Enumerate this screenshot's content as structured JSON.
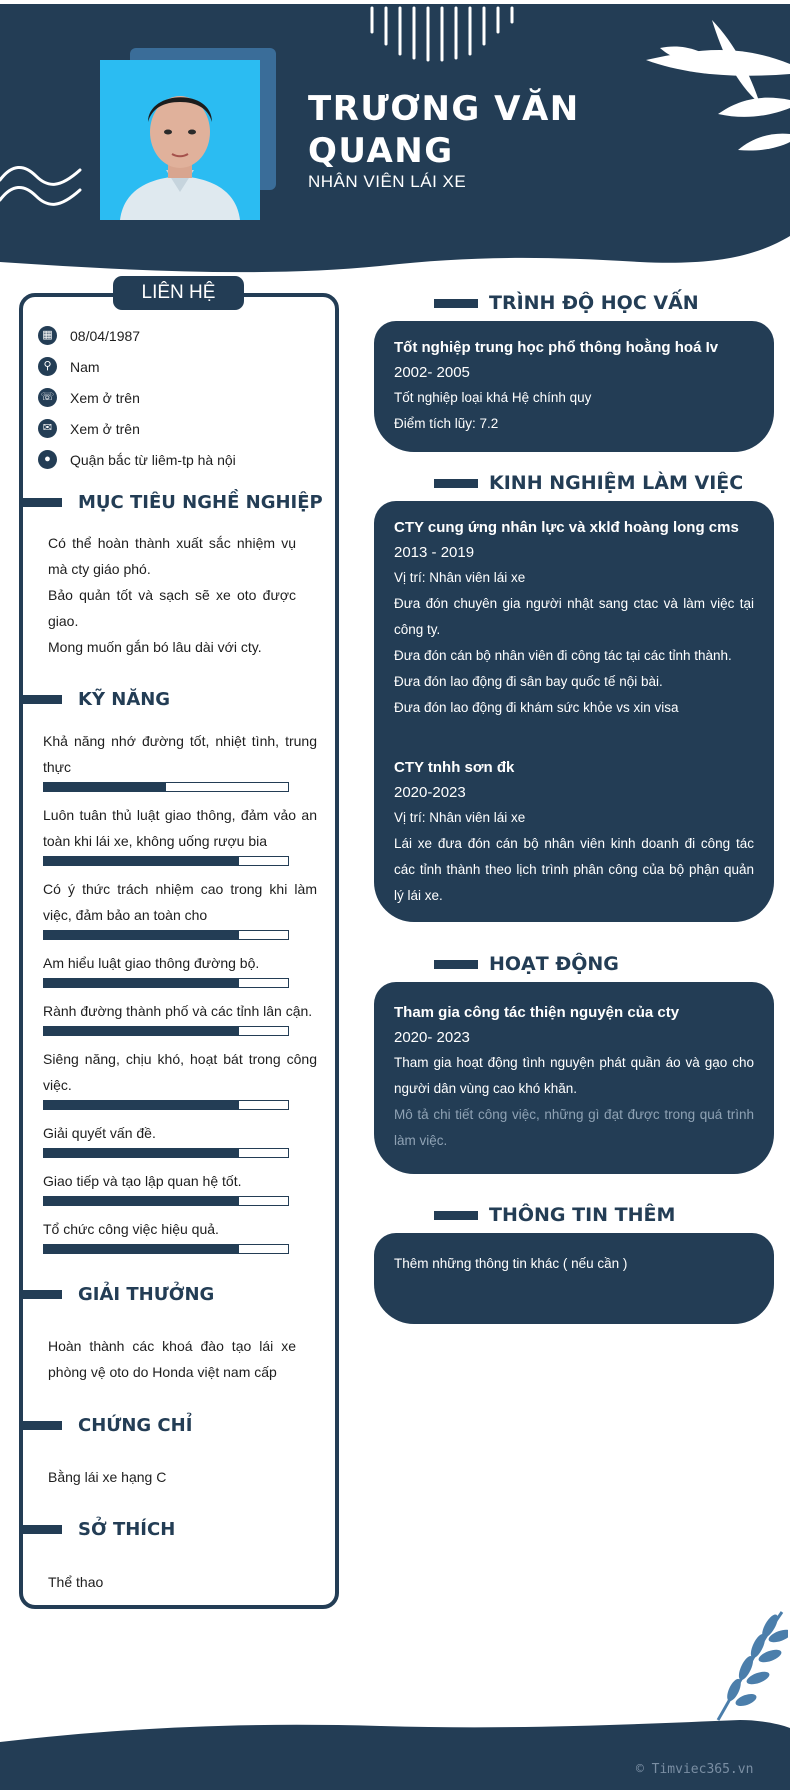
{
  "profile": {
    "name": "TRƯƠNG VĂN QUANG",
    "role": "NHÂN VIÊN LÁI XE"
  },
  "contact": {
    "title": "LIÊN HỆ",
    "items": [
      {
        "icon": "calendar-icon",
        "text": "08/04/1987"
      },
      {
        "icon": "gender-icon",
        "text": "Nam"
      },
      {
        "icon": "phone-icon",
        "text": "Xem ở trên"
      },
      {
        "icon": "email-icon",
        "text": "Xem ở trên"
      },
      {
        "icon": "location-pin-icon",
        "text": "Quận bắc từ liêm-tp hà nội"
      }
    ]
  },
  "objective": {
    "title": "MỤC TIÊU NGHỀ NGHIỆP",
    "lines": [
      "Có thể hoàn thành xuất sắc nhiệm vụ mà cty giáo phó.",
      "Bảo quản tốt và sạch sẽ xe oto được giao.",
      "Mong muốn gắn bó lâu dài với cty."
    ]
  },
  "skills": {
    "title": "KỸ NĂNG",
    "items": [
      {
        "label": "Khả năng nhớ đường tốt, nhiệt tình, trung thực",
        "level": 0.5
      },
      {
        "label": "Luôn tuân thủ luật giao thông, đảm vảo an toàn khi lái xe, không uống rượu bia",
        "level": 0.8
      },
      {
        "label": "Có ý thức trách nhiệm cao trong khi làm việc, đảm bảo an toàn cho",
        "level": 0.8
      },
      {
        "label": "Am hiểu luật giao thông đường bộ.",
        "level": 0.8
      },
      {
        "label": "Rành đường thành phố và các tỉnh lân cận.",
        "level": 0.8
      },
      {
        "label": "Siêng năng, chịu khó, hoạt bát trong công việc.",
        "level": 0.8
      },
      {
        "label": "Giải quyết vấn đề.",
        "level": 0.8
      },
      {
        "label": "Giao tiếp và tạo lập quan hệ tốt.",
        "level": 0.8
      },
      {
        "label": "Tổ chức công việc hiệu quả.",
        "level": 0.8
      }
    ]
  },
  "awards": {
    "title": "GIẢI THƯỞNG",
    "text": "Hoàn thành các khoá đào tạo lái xe phòng vệ oto do Honda việt nam cấp"
  },
  "certificates": {
    "title": "CHỨNG CHỈ",
    "text": "Bằng lái xe hạng C"
  },
  "hobbies": {
    "title": "SỞ THÍCH",
    "text": "Thể thao"
  },
  "education": {
    "title": "TRÌNH ĐỘ HỌC VẤN",
    "school": "Tốt nghiệp trung học phổ thông hoằng hoá Iv",
    "period": "2002- 2005",
    "lines": [
      "Tốt nghiệp loại khá Hệ chính quy",
      "Điểm tích lũy: 7.2"
    ]
  },
  "experience": {
    "title": "KINH NGHIỆM LÀM VIỆC",
    "jobs": [
      {
        "company": "CTY cung ứng nhân lực và xklđ hoàng long cms",
        "period": "2013 - 2019",
        "lines": [
          "Vị trí: Nhân viên lái xe",
          "Đưa đón chuyên gia người nhật sang ctac và làm việc tại công ty.",
          "Đưa đón cán bộ nhân viên đi công tác tại các tỉnh thành.",
          "Đưa đón lao động đi sân bay quốc tế nội bài.",
          "Đưa đón lao động đi khám sức khỏe vs xin visa"
        ]
      },
      {
        "company": "CTY tnhh sơn đk",
        "period": "2020-2023",
        "lines": [
          "Vị trí: Nhân viên lái xe",
          "Lái xe đưa đón cán bộ nhân viên kinh doanh đi công tác các tỉnh thành theo lịch trình phân công của bộ phận quản lý lái xe."
        ]
      }
    ]
  },
  "activities": {
    "title": "HOẠT ĐỘNG",
    "name": "Tham gia công tác thiện nguyện của cty",
    "period": "2020- 2023",
    "line": "Tham gia hoạt động tình nguyện phát quần áo và gạo cho người dân vùng cao khó khăn.",
    "muted": " Mô tả chi tiết công việc, những gì đạt được trong quá trình làm việc."
  },
  "extra": {
    "title": "THÔNG TIN THÊM",
    "text": "Thêm những thông tin khác ( nếu cần )"
  },
  "footer": {
    "copyright": "© Timviec365.vn"
  },
  "colors": {
    "primary": "#233d55",
    "accent": "#3a6d99",
    "photo_bg": "#2bbcf2",
    "leaf": "#4b7eab"
  }
}
